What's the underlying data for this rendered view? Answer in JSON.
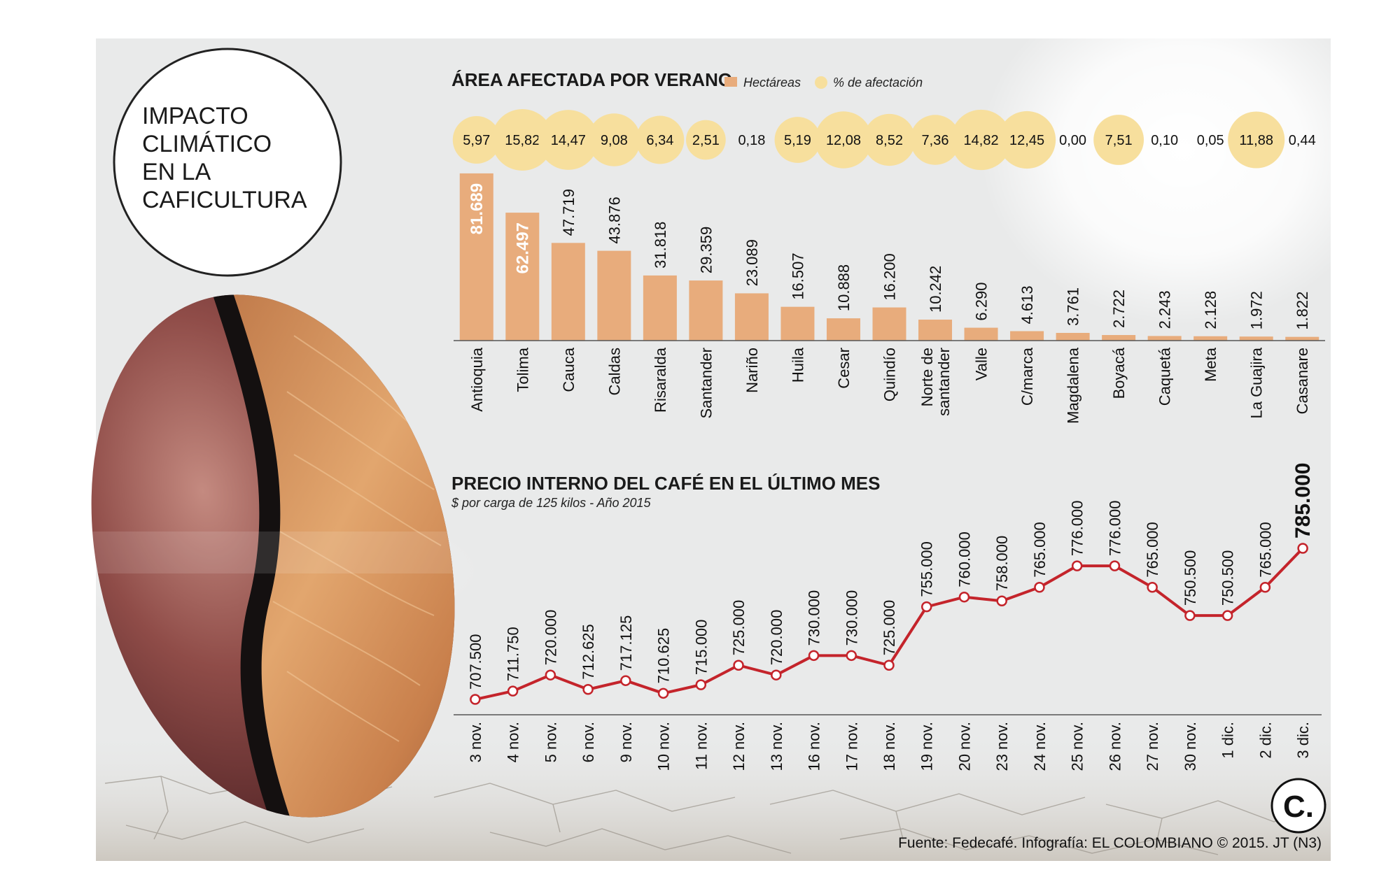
{
  "title_lines": [
    "IMPACTO",
    "CLIMÁTICO",
    "EN LA",
    "CAFICULTURA"
  ],
  "logo_text": "C.",
  "source": "Fuente: Fedecafé. Infografía: EL COLOMBIANO © 2015. JT (N3)",
  "colors": {
    "bar": "#e8ac7c",
    "bubble": "#f7df9d",
    "line": "#c4242b",
    "background": "#e9eaea"
  },
  "chart_data": [
    {
      "type": "bar",
      "title": "ÁREA AFECTADA POR VERANO",
      "legend": [
        "Hectáreas",
        "% de afectación"
      ],
      "categories": [
        "Antioquia",
        "Tolima",
        "Cauca",
        "Caldas",
        "Risaralda",
        "Santander",
        "Nariño",
        "Huila",
        "Cesar",
        "Quindío",
        "Norte de santander",
        "Valle",
        "C/marca",
        "Magdalena",
        "Boyacá",
        "Caquetá",
        "Meta",
        "La Guajira",
        "Casanare"
      ],
      "values": [
        81689,
        62497,
        47719,
        43876,
        31818,
        29359,
        23089,
        16507,
        10888,
        16200,
        10242,
        6290,
        4613,
        3761,
        2722,
        2243,
        2128,
        1972,
        1822
      ],
      "value_labels": [
        "81.689",
        "62.497",
        "47.719",
        "43.876",
        "31.818",
        "29.359",
        "23.089",
        "16.507",
        "10.888",
        "16.200",
        "10.242",
        "6.290",
        "4.613",
        "3.761",
        "2.722",
        "2.243",
        "2.128",
        "1.972",
        "1.822"
      ],
      "percent_affected": [
        5.97,
        15.82,
        14.47,
        9.08,
        6.34,
        2.51,
        0.18,
        5.19,
        12.08,
        8.52,
        7.36,
        14.82,
        12.45,
        0.0,
        7.51,
        0.1,
        0.05,
        11.88,
        0.44
      ],
      "percent_labels": [
        "5,97",
        "15,82",
        "14,47",
        "9,08",
        "6,34",
        "2,51",
        "0,18",
        "5,19",
        "12,08",
        "8,52",
        "7,36",
        "14,82",
        "12,45",
        "0,00",
        "7,51",
        "0,10",
        "0,05",
        "11,88",
        "0,44"
      ],
      "ylim": [
        0,
        82000
      ]
    },
    {
      "type": "line",
      "title": "PRECIO INTERNO DEL CAFÉ EN EL ÚLTIMO MES",
      "subtitle": "$ por carga de 125 kilos - Año 2015",
      "x": [
        "3 nov.",
        "4 nov.",
        "5 nov.",
        "6 nov.",
        "9 nov.",
        "10 nov.",
        "11 nov.",
        "12 nov.",
        "13 nov.",
        "16 nov.",
        "17 nov.",
        "18 nov.",
        "19 nov.",
        "20 nov.",
        "23 nov.",
        "24 nov.",
        "25 nov.",
        "26 nov.",
        "27 nov.",
        "30 nov.",
        "1 dic.",
        "2 dic.",
        "3 dic."
      ],
      "values": [
        707500,
        711750,
        720000,
        712625,
        717125,
        710625,
        715000,
        725000,
        720000,
        730000,
        730000,
        725000,
        755000,
        760000,
        758000,
        765000,
        776000,
        776000,
        765000,
        750500,
        750500,
        765000,
        785000
      ],
      "value_labels": [
        "707.500",
        "711.750",
        "720.000",
        "712.625",
        "717.125",
        "710.625",
        "715.000",
        "725.000",
        "720.000",
        "730.000",
        "730.000",
        "725.000",
        "755.000",
        "760.000",
        "758.000",
        "765.000",
        "776.000",
        "776.000",
        "765.000",
        "750.500",
        "750.500",
        "765.000",
        "785.000"
      ],
      "ylim": [
        705000,
        785000
      ]
    }
  ]
}
